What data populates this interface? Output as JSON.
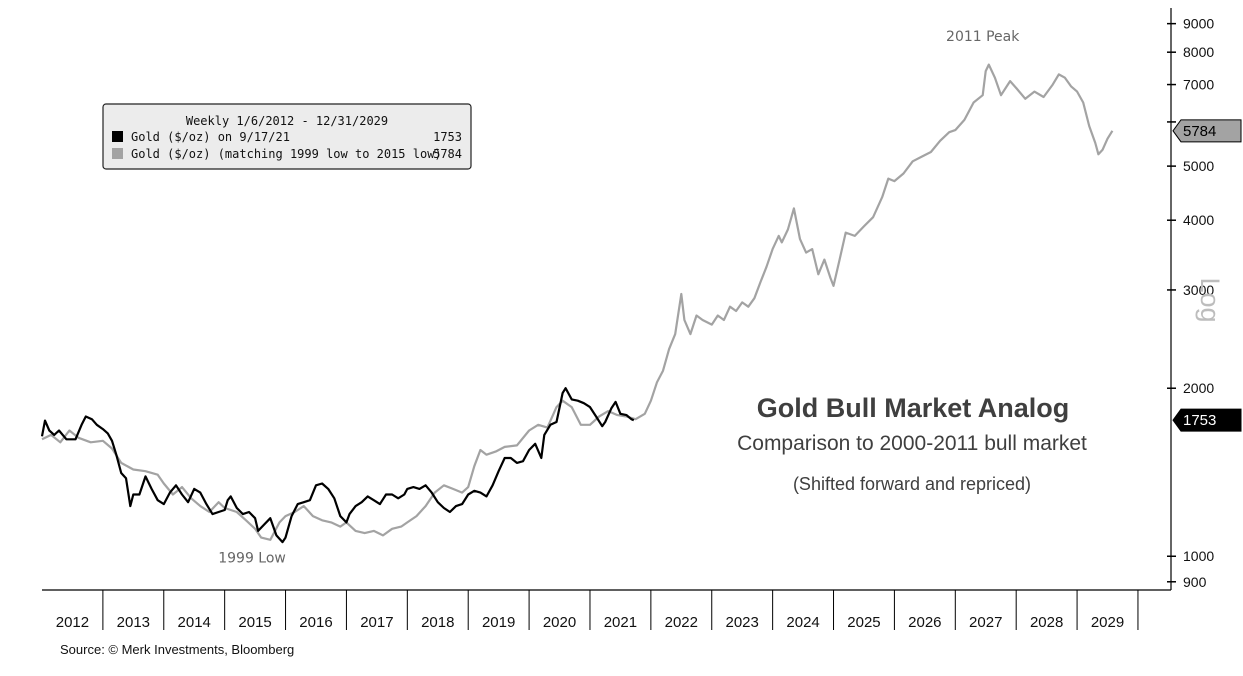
{
  "chart_data": {
    "type": "line",
    "y_scale": "log",
    "ylim": [
      870,
      9600
    ],
    "xlim": [
      2012.0,
      2030.05
    ],
    "y_axis_side": "right",
    "y_scale_label": "Log",
    "y_ticks": [
      900,
      1000,
      2000,
      3000,
      4000,
      5000,
      6000,
      7000,
      8000,
      9000
    ],
    "y_tick_labels": [
      "900",
      "1000",
      "2000",
      "3000",
      "4000",
      "5000",
      "",
      "7000",
      "8000",
      "9000"
    ],
    "x_categories": [
      "2012",
      "2013",
      "2014",
      "2015",
      "2016",
      "2017",
      "2018",
      "2019",
      "2020",
      "2021",
      "2022",
      "2023",
      "2024",
      "2025",
      "2026",
      "2027",
      "2028",
      "2029"
    ],
    "legend": {
      "title": "Weekly 1/6/2012 - 12/31/2029",
      "position": "top-left",
      "entries": [
        {
          "label": "Gold ($/oz) on 9/17/21",
          "value": "1753",
          "color": "#000000"
        },
        {
          "label": "Gold ($/oz) (matching 1999 low to 2015 low)",
          "value": "5784",
          "color": "#a3a3a3"
        }
      ]
    },
    "value_tags": [
      {
        "value": 5784,
        "label": "5784",
        "series": 1
      },
      {
        "value": 1753,
        "label": "1753",
        "series": 0
      }
    ],
    "annotations": [
      {
        "text": "2011 Peak",
        "x": 2027.45,
        "y": 8000
      },
      {
        "text": "1999 Low",
        "x": 2015.45,
        "y": 1050
      }
    ],
    "title": "Gold Bull Market Analog",
    "subtitle": "Comparison to 2000-2011 bull market",
    "note": "(Shifted forward and repriced)",
    "series": [
      {
        "name": "Gold ($/oz) on 9/17/21",
        "color": "#000000",
        "points": [
          [
            2012.0,
            1640
          ],
          [
            2012.05,
            1750
          ],
          [
            2012.12,
            1680
          ],
          [
            2012.2,
            1650
          ],
          [
            2012.28,
            1680
          ],
          [
            2012.4,
            1620
          ],
          [
            2012.55,
            1620
          ],
          [
            2012.65,
            1720
          ],
          [
            2012.72,
            1780
          ],
          [
            2012.82,
            1760
          ],
          [
            2012.9,
            1720
          ],
          [
            2013.0,
            1690
          ],
          [
            2013.08,
            1660
          ],
          [
            2013.15,
            1610
          ],
          [
            2013.22,
            1520
          ],
          [
            2013.3,
            1410
          ],
          [
            2013.38,
            1380
          ],
          [
            2013.45,
            1230
          ],
          [
            2013.5,
            1290
          ],
          [
            2013.6,
            1290
          ],
          [
            2013.7,
            1390
          ],
          [
            2013.8,
            1320
          ],
          [
            2013.9,
            1260
          ],
          [
            2014.0,
            1240
          ],
          [
            2014.1,
            1300
          ],
          [
            2014.2,
            1340
          ],
          [
            2014.3,
            1290
          ],
          [
            2014.4,
            1250
          ],
          [
            2014.5,
            1320
          ],
          [
            2014.6,
            1300
          ],
          [
            2014.7,
            1240
          ],
          [
            2014.8,
            1190
          ],
          [
            2014.9,
            1200
          ],
          [
            2015.0,
            1210
          ],
          [
            2015.05,
            1260
          ],
          [
            2015.1,
            1280
          ],
          [
            2015.2,
            1220
          ],
          [
            2015.3,
            1190
          ],
          [
            2015.4,
            1200
          ],
          [
            2015.5,
            1170
          ],
          [
            2015.55,
            1110
          ],
          [
            2015.65,
            1140
          ],
          [
            2015.75,
            1170
          ],
          [
            2015.85,
            1090
          ],
          [
            2015.95,
            1060
          ],
          [
            2016.0,
            1080
          ],
          [
            2016.1,
            1180
          ],
          [
            2016.2,
            1240
          ],
          [
            2016.3,
            1250
          ],
          [
            2016.4,
            1260
          ],
          [
            2016.5,
            1340
          ],
          [
            2016.6,
            1350
          ],
          [
            2016.7,
            1320
          ],
          [
            2016.8,
            1270
          ],
          [
            2016.9,
            1180
          ],
          [
            2017.0,
            1150
          ],
          [
            2017.05,
            1190
          ],
          [
            2017.15,
            1230
          ],
          [
            2017.25,
            1250
          ],
          [
            2017.35,
            1280
          ],
          [
            2017.45,
            1260
          ],
          [
            2017.55,
            1240
          ],
          [
            2017.65,
            1290
          ],
          [
            2017.75,
            1290
          ],
          [
            2017.85,
            1270
          ],
          [
            2017.95,
            1290
          ],
          [
            2018.0,
            1320
          ],
          [
            2018.1,
            1330
          ],
          [
            2018.2,
            1320
          ],
          [
            2018.3,
            1340
          ],
          [
            2018.4,
            1300
          ],
          [
            2018.5,
            1250
          ],
          [
            2018.6,
            1220
          ],
          [
            2018.7,
            1200
          ],
          [
            2018.8,
            1230
          ],
          [
            2018.9,
            1240
          ],
          [
            2019.0,
            1290
          ],
          [
            2019.1,
            1310
          ],
          [
            2019.2,
            1300
          ],
          [
            2019.3,
            1280
          ],
          [
            2019.4,
            1340
          ],
          [
            2019.5,
            1420
          ],
          [
            2019.6,
            1500
          ],
          [
            2019.7,
            1500
          ],
          [
            2019.8,
            1470
          ],
          [
            2019.9,
            1480
          ],
          [
            2020.0,
            1550
          ],
          [
            2020.1,
            1590
          ],
          [
            2020.2,
            1500
          ],
          [
            2020.25,
            1650
          ],
          [
            2020.35,
            1720
          ],
          [
            2020.45,
            1740
          ],
          [
            2020.55,
            1960
          ],
          [
            2020.6,
            2000
          ],
          [
            2020.7,
            1910
          ],
          [
            2020.8,
            1900
          ],
          [
            2020.9,
            1880
          ],
          [
            2021.0,
            1850
          ],
          [
            2021.1,
            1780
          ],
          [
            2021.2,
            1710
          ],
          [
            2021.25,
            1740
          ],
          [
            2021.35,
            1840
          ],
          [
            2021.42,
            1890
          ],
          [
            2021.5,
            1800
          ],
          [
            2021.6,
            1790
          ],
          [
            2021.68,
            1760
          ],
          [
            2021.72,
            1753
          ]
        ]
      },
      {
        "name": "Gold ($/oz) (matching 1999 low to 2015 low)",
        "color": "#a3a3a3",
        "points": [
          [
            2012.0,
            1620
          ],
          [
            2012.15,
            1650
          ],
          [
            2012.3,
            1600
          ],
          [
            2012.45,
            1680
          ],
          [
            2012.6,
            1630
          ],
          [
            2012.8,
            1600
          ],
          [
            2013.0,
            1610
          ],
          [
            2013.15,
            1560
          ],
          [
            2013.3,
            1470
          ],
          [
            2013.5,
            1430
          ],
          [
            2013.7,
            1420
          ],
          [
            2013.9,
            1400
          ],
          [
            2014.0,
            1350
          ],
          [
            2014.15,
            1290
          ],
          [
            2014.3,
            1330
          ],
          [
            2014.45,
            1270
          ],
          [
            2014.6,
            1230
          ],
          [
            2014.75,
            1200
          ],
          [
            2014.9,
            1250
          ],
          [
            2015.0,
            1220
          ],
          [
            2015.2,
            1200
          ],
          [
            2015.35,
            1160
          ],
          [
            2015.5,
            1120
          ],
          [
            2015.6,
            1080
          ],
          [
            2015.75,
            1070
          ],
          [
            2015.9,
            1150
          ],
          [
            2016.0,
            1180
          ],
          [
            2016.15,
            1200
          ],
          [
            2016.3,
            1230
          ],
          [
            2016.45,
            1180
          ],
          [
            2016.6,
            1160
          ],
          [
            2016.75,
            1150
          ],
          [
            2016.9,
            1130
          ],
          [
            2017.0,
            1150
          ],
          [
            2017.15,
            1110
          ],
          [
            2017.3,
            1100
          ],
          [
            2017.45,
            1110
          ],
          [
            2017.6,
            1090
          ],
          [
            2017.75,
            1120
          ],
          [
            2017.9,
            1130
          ],
          [
            2018.0,
            1150
          ],
          [
            2018.15,
            1180
          ],
          [
            2018.3,
            1230
          ],
          [
            2018.45,
            1300
          ],
          [
            2018.6,
            1340
          ],
          [
            2018.75,
            1320
          ],
          [
            2018.9,
            1300
          ],
          [
            2019.0,
            1330
          ],
          [
            2019.1,
            1450
          ],
          [
            2019.2,
            1550
          ],
          [
            2019.3,
            1520
          ],
          [
            2019.45,
            1540
          ],
          [
            2019.6,
            1570
          ],
          [
            2019.8,
            1580
          ],
          [
            2020.0,
            1680
          ],
          [
            2020.15,
            1720
          ],
          [
            2020.3,
            1700
          ],
          [
            2020.45,
            1850
          ],
          [
            2020.55,
            1900
          ],
          [
            2020.7,
            1850
          ],
          [
            2020.85,
            1720
          ],
          [
            2021.0,
            1720
          ],
          [
            2021.15,
            1780
          ],
          [
            2021.3,
            1820
          ],
          [
            2021.45,
            1790
          ],
          [
            2021.6,
            1780
          ],
          [
            2021.75,
            1760
          ],
          [
            2021.9,
            1800
          ],
          [
            2022.0,
            1900
          ],
          [
            2022.1,
            2050
          ],
          [
            2022.2,
            2150
          ],
          [
            2022.3,
            2350
          ],
          [
            2022.4,
            2500
          ],
          [
            2022.5,
            2950
          ],
          [
            2022.55,
            2650
          ],
          [
            2022.65,
            2500
          ],
          [
            2022.75,
            2700
          ],
          [
            2022.85,
            2650
          ],
          [
            2023.0,
            2600
          ],
          [
            2023.1,
            2700
          ],
          [
            2023.2,
            2650
          ],
          [
            2023.3,
            2800
          ],
          [
            2023.4,
            2750
          ],
          [
            2023.5,
            2850
          ],
          [
            2023.6,
            2800
          ],
          [
            2023.7,
            2900
          ],
          [
            2023.8,
            3100
          ],
          [
            2023.9,
            3300
          ],
          [
            2024.0,
            3550
          ],
          [
            2024.1,
            3750
          ],
          [
            2024.15,
            3650
          ],
          [
            2024.25,
            3850
          ],
          [
            2024.35,
            4200
          ],
          [
            2024.45,
            3700
          ],
          [
            2024.55,
            3500
          ],
          [
            2024.65,
            3550
          ],
          [
            2024.75,
            3200
          ],
          [
            2024.85,
            3400
          ],
          [
            2024.95,
            3150
          ],
          [
            2025.0,
            3050
          ],
          [
            2025.1,
            3400
          ],
          [
            2025.2,
            3800
          ],
          [
            2025.35,
            3750
          ],
          [
            2025.5,
            3900
          ],
          [
            2025.65,
            4050
          ],
          [
            2025.8,
            4400
          ],
          [
            2025.9,
            4750
          ],
          [
            2026.0,
            4700
          ],
          [
            2026.15,
            4850
          ],
          [
            2026.3,
            5100
          ],
          [
            2026.45,
            5200
          ],
          [
            2026.6,
            5300
          ],
          [
            2026.75,
            5550
          ],
          [
            2026.9,
            5750
          ],
          [
            2027.0,
            5800
          ],
          [
            2027.15,
            6050
          ],
          [
            2027.3,
            6500
          ],
          [
            2027.45,
            6700
          ],
          [
            2027.5,
            7400
          ],
          [
            2027.55,
            7600
          ],
          [
            2027.65,
            7200
          ],
          [
            2027.75,
            6700
          ],
          [
            2027.9,
            7100
          ],
          [
            2028.0,
            6900
          ],
          [
            2028.15,
            6600
          ],
          [
            2028.3,
            6800
          ],
          [
            2028.45,
            6650
          ],
          [
            2028.6,
            7000
          ],
          [
            2028.7,
            7300
          ],
          [
            2028.8,
            7200
          ],
          [
            2028.9,
            6950
          ],
          [
            2029.0,
            6800
          ],
          [
            2029.1,
            6500
          ],
          [
            2029.2,
            5900
          ],
          [
            2029.3,
            5500
          ],
          [
            2029.35,
            5250
          ],
          [
            2029.42,
            5350
          ],
          [
            2029.5,
            5600
          ],
          [
            2029.58,
            5784
          ]
        ]
      }
    ]
  },
  "source": "Source: © Merk Investments, Bloomberg"
}
